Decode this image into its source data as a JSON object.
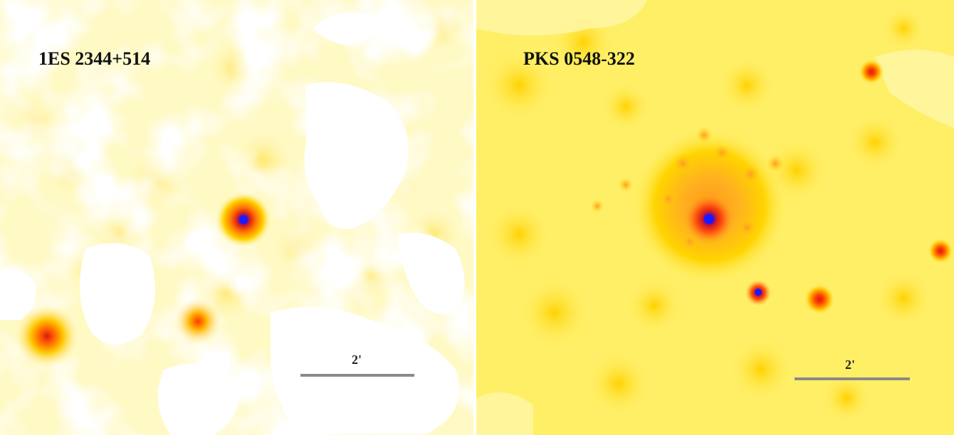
{
  "panels": [
    {
      "label": "1ES 2344+514",
      "scale_label": "2'",
      "background_color": "#fff9c4"
    },
    {
      "label": "PKS 0548-322",
      "scale_label": "2'",
      "background_color": "#ffef66"
    }
  ],
  "colors": {
    "faint": "#fff4a0",
    "mid": "#ffd200",
    "bright": "#ff6a00",
    "peak": "#d81a1a",
    "core": "#1a1aff",
    "empty": "#ffffff"
  }
}
